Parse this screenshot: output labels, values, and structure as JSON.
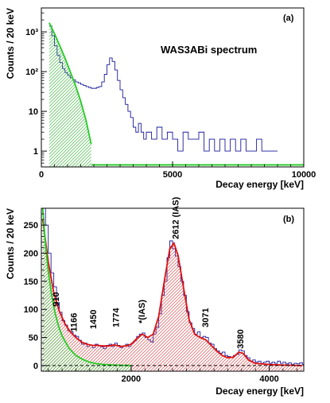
{
  "chart_data": [
    {
      "panel": "(a)",
      "type": "line",
      "annotation": "WAS3ABi spectrum",
      "xlabel": "Decay energy [keV]",
      "ylabel": "Counts / 20 keV",
      "xlim": [
        0,
        10000
      ],
      "ylim": [
        0.4,
        4000
      ],
      "yscale": "log",
      "xticks": [
        0,
        5000,
        10000
      ],
      "xtick_labels": [
        "0",
        "5000",
        "10000"
      ],
      "yticks": [
        1,
        10,
        100,
        1000
      ],
      "ytick_labels": [
        "1",
        "10",
        "10²",
        "10³"
      ],
      "grid": false,
      "colors": {
        "data": "#1a1a9c",
        "fit_green": "#22cc22",
        "hatch_green": "#44bb44"
      },
      "series": [
        {
          "style": "step histogram",
          "points": [
            [
              300,
              1400
            ],
            [
              400,
              800
            ],
            [
              500,
              450
            ],
            [
              600,
              260
            ],
            [
              700,
              170
            ],
            [
              800,
              120
            ],
            [
              900,
              95
            ],
            [
              1000,
              80
            ],
            [
              1100,
              70
            ],
            [
              1200,
              62
            ],
            [
              1300,
              55
            ],
            [
              1400,
              52
            ],
            [
              1500,
              48
            ],
            [
              1600,
              45
            ],
            [
              1700,
              42
            ],
            [
              1800,
              40
            ],
            [
              1900,
              38
            ],
            [
              2000,
              38
            ],
            [
              2100,
              40
            ],
            [
              2200,
              42
            ],
            [
              2300,
              55
            ],
            [
              2400,
              85
            ],
            [
              2500,
              150
            ],
            [
              2600,
              220
            ],
            [
              2700,
              180
            ],
            [
              2800,
              110
            ],
            [
              2900,
              60
            ],
            [
              3000,
              35
            ],
            [
              3100,
              22
            ],
            [
              3200,
              15
            ],
            [
              3300,
              10
            ],
            [
              3400,
              7
            ],
            [
              3500,
              4
            ],
            [
              3600,
              3
            ],
            [
              3700,
              5
            ],
            [
              3800,
              3
            ],
            [
              3900,
              2
            ],
            [
              4000,
              3
            ],
            [
              4200,
              2
            ],
            [
              4400,
              4
            ],
            [
              4600,
              2
            ],
            [
              4800,
              3
            ],
            [
              5000,
              2
            ],
            [
              5200,
              1
            ],
            [
              5400,
              3
            ],
            [
              5600,
              2
            ],
            [
              5800,
              2
            ],
            [
              6000,
              3
            ],
            [
              6200,
              1
            ],
            [
              6400,
              2
            ],
            [
              6600,
              1
            ],
            [
              6800,
              2
            ],
            [
              7000,
              1
            ],
            [
              7200,
              2
            ],
            [
              7400,
              1
            ],
            [
              7600,
              2
            ],
            [
              7800,
              1
            ],
            [
              8000,
              1
            ],
            [
              8200,
              2
            ],
            [
              8400,
              1
            ],
            [
              8600,
              1
            ],
            [
              8800,
              1
            ]
          ]
        },
        {
          "style": "fit curve, hatched",
          "points": [
            [
              300,
              1700
            ],
            [
              500,
              900
            ],
            [
              700,
              450
            ],
            [
              900,
              220
            ],
            [
              1100,
              100
            ],
            [
              1300,
              45
            ],
            [
              1500,
              18
            ],
            [
              1700,
              6
            ],
            [
              1900,
              1.5
            ]
          ]
        },
        {
          "style": "baseline",
          "points": [
            [
              1900,
              0.45
            ],
            [
              10000,
              0.45
            ]
          ]
        }
      ]
    },
    {
      "panel": "(b)",
      "type": "line",
      "xlabel": "Decay energy [keV]",
      "ylabel": "Counts / 20 keV",
      "xlim": [
        700,
        4500
      ],
      "ylim": [
        -10,
        280
      ],
      "yscale": "linear",
      "xticks": [
        2000,
        4000
      ],
      "xtick_labels": [
        "2000",
        "4000"
      ],
      "yticks": [
        0,
        50,
        100,
        150,
        200,
        250
      ],
      "ytick_labels": [
        "0",
        "50",
        "100",
        "150",
        "200",
        "250"
      ],
      "grid": false,
      "colors": {
        "data": "#1a1a9c",
        "fit_red": "#dd1111",
        "fit_green": "#22cc22",
        "hatch_red": "#e05050",
        "hatch_green": "#44bb44"
      },
      "peak_labels": [
        {
          "text": "910",
          "x": 910,
          "y": 105
        },
        {
          "text": "1166",
          "x": 1166,
          "y": 60
        },
        {
          "text": "1450",
          "x": 1450,
          "y": 65
        },
        {
          "text": "1774",
          "x": 1774,
          "y": 68
        },
        {
          "text": "*(IAS)",
          "x": 2150,
          "y": 75
        },
        {
          "text": "2612 (IAS)",
          "x": 2640,
          "y": 225
        },
        {
          "text": "3071",
          "x": 3071,
          "y": 68
        },
        {
          "text": "3580",
          "x": 3580,
          "y": 30
        }
      ],
      "series": [
        {
          "style": "step histogram",
          "points": [
            [
              720,
              290
            ],
            [
              760,
              250
            ],
            [
              800,
              200
            ],
            [
              840,
              165
            ],
            [
              880,
              140
            ],
            [
              920,
              112
            ],
            [
              960,
              95
            ],
            [
              1000,
              80
            ],
            [
              1040,
              72
            ],
            [
              1080,
              62
            ],
            [
              1120,
              60
            ],
            [
              1160,
              54
            ],
            [
              1200,
              52
            ],
            [
              1240,
              45
            ],
            [
              1280,
              38
            ],
            [
              1320,
              40
            ],
            [
              1360,
              34
            ],
            [
              1400,
              36
            ],
            [
              1440,
              32
            ],
            [
              1480,
              38
            ],
            [
              1520,
              35
            ],
            [
              1560,
              33
            ],
            [
              1600,
              30
            ],
            [
              1640,
              36
            ],
            [
              1680,
              38
            ],
            [
              1720,
              34
            ],
            [
              1760,
              40
            ],
            [
              1800,
              36
            ],
            [
              1840,
              32
            ],
            [
              1880,
              35
            ],
            [
              1920,
              38
            ],
            [
              1960,
              34
            ],
            [
              2000,
              40
            ],
            [
              2040,
              44
            ],
            [
              2080,
              52
            ],
            [
              2120,
              56
            ],
            [
              2160,
              58
            ],
            [
              2200,
              50
            ],
            [
              2240,
              46
            ],
            [
              2280,
              42
            ],
            [
              2320,
              56
            ],
            [
              2360,
              68
            ],
            [
              2400,
              92
            ],
            [
              2440,
              125
            ],
            [
              2480,
              150
            ],
            [
              2520,
              192
            ],
            [
              2560,
              222
            ],
            [
              2600,
              208
            ],
            [
              2640,
              195
            ],
            [
              2680,
              176
            ],
            [
              2720,
              150
            ],
            [
              2760,
              125
            ],
            [
              2800,
              96
            ],
            [
              2840,
              76
            ],
            [
              2880,
              66
            ],
            [
              2920,
              56
            ],
            [
              2960,
              60
            ],
            [
              3000,
              50
            ],
            [
              3040,
              52
            ],
            [
              3080,
              50
            ],
            [
              3120,
              40
            ],
            [
              3160,
              38
            ],
            [
              3200,
              30
            ],
            [
              3240,
              26
            ],
            [
              3280,
              22
            ],
            [
              3320,
              24
            ],
            [
              3360,
              18
            ],
            [
              3400,
              16
            ],
            [
              3440,
              14
            ],
            [
              3480,
              18
            ],
            [
              3520,
              20
            ],
            [
              3560,
              28
            ],
            [
              3600,
              26
            ],
            [
              3640,
              18
            ],
            [
              3680,
              14
            ],
            [
              3720,
              8
            ],
            [
              3760,
              10
            ],
            [
              3800,
              6
            ],
            [
              3840,
              8
            ],
            [
              3880,
              4
            ],
            [
              3920,
              6
            ],
            [
              3960,
              8
            ],
            [
              4000,
              4
            ],
            [
              4040,
              6
            ],
            [
              4080,
              4
            ],
            [
              4120,
              8
            ],
            [
              4160,
              4
            ],
            [
              4200,
              6
            ],
            [
              4240,
              3
            ],
            [
              4280,
              5
            ],
            [
              4320,
              2
            ],
            [
              4360,
              4
            ],
            [
              4400,
              3
            ],
            [
              4440,
              5
            ],
            [
              4480,
              2
            ]
          ]
        },
        {
          "style": "total fit, red hatched",
          "points": [
            [
              720,
              260
            ],
            [
              800,
              185
            ],
            [
              880,
              130
            ],
            [
              960,
              97
            ],
            [
              1040,
              75
            ],
            [
              1120,
              60
            ],
            [
              1200,
              50
            ],
            [
              1280,
              42
            ],
            [
              1360,
              38
            ],
            [
              1440,
              36
            ],
            [
              1520,
              36
            ],
            [
              1600,
              35
            ],
            [
              1680,
              35
            ],
            [
              1760,
              37
            ],
            [
              1840,
              34
            ],
            [
              1920,
              35
            ],
            [
              2000,
              38
            ],
            [
              2080,
              48
            ],
            [
              2160,
              56
            ],
            [
              2240,
              50
            ],
            [
              2320,
              56
            ],
            [
              2400,
              88
            ],
            [
              2480,
              150
            ],
            [
              2560,
              208
            ],
            [
              2620,
              218
            ],
            [
              2680,
              196
            ],
            [
              2760,
              138
            ],
            [
              2840,
              82
            ],
            [
              2920,
              56
            ],
            [
              3000,
              50
            ],
            [
              3080,
              46
            ],
            [
              3160,
              36
            ],
            [
              3240,
              26
            ],
            [
              3320,
              18
            ],
            [
              3400,
              14
            ],
            [
              3480,
              15
            ],
            [
              3560,
              24
            ],
            [
              3620,
              22
            ],
            [
              3700,
              10
            ],
            [
              3800,
              4
            ],
            [
              4000,
              2
            ],
            [
              4200,
              1
            ],
            [
              4480,
              0
            ]
          ]
        },
        {
          "style": "exponential fit, green hatched",
          "points": [
            [
              720,
              280
            ],
            [
              760,
              215
            ],
            [
              800,
              168
            ],
            [
              850,
              125
            ],
            [
              900,
              93
            ],
            [
              950,
              70
            ],
            [
              1000,
              53
            ],
            [
              1100,
              31
            ],
            [
              1200,
              18
            ],
            [
              1300,
              11
            ],
            [
              1400,
              6
            ],
            [
              1500,
              3.5
            ],
            [
              1600,
              2
            ],
            [
              1800,
              0.7
            ],
            [
              2000,
              0.2
            ]
          ]
        },
        {
          "style": "baseline dashed",
          "points": [
            [
              700,
              0
            ],
            [
              4500,
              0
            ]
          ]
        }
      ]
    }
  ]
}
